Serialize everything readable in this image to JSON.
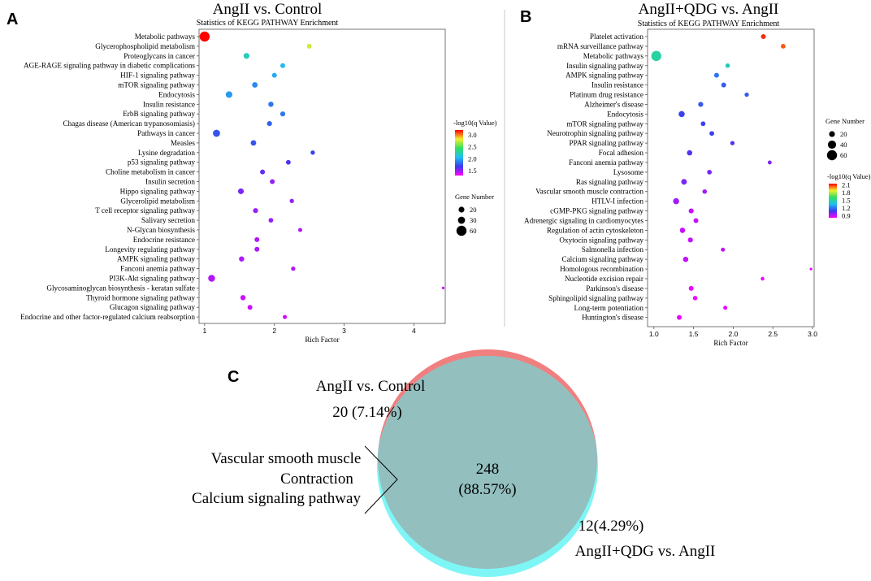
{
  "panels": {
    "a": {
      "letter": "A",
      "title": "AngII vs. Control",
      "subtitle": "Statistics of KEGG PATHWAY Enrichment"
    },
    "b": {
      "letter": "B",
      "title": "AngII+QDG vs. AngII",
      "subtitle": "Statistics of KEGG PATHWAY Enrichment"
    },
    "c": {
      "letter": "C"
    }
  },
  "colors": {
    "low": "#ff00ff",
    "mid1": "#3a3af0",
    "mid2": "#20c0f0",
    "mid3": "#30e060",
    "mid4": "#f0f030",
    "high": "#ff0000",
    "venn_left": "#f08080",
    "venn_right": "#7ff6f6",
    "venn_overlap": "#93bfbf"
  },
  "chart_data": [
    {
      "type": "scatter",
      "title": "AngII vs. Control",
      "subtitle": "Statistics of KEGG PATHWAY Enrichment",
      "xlabel": "Rich Factor",
      "xlim": [
        0.92,
        4.45
      ],
      "xticks": [
        1,
        2,
        3,
        4
      ],
      "color_label": "-log10(q Value)",
      "color_range": [
        1.3,
        3.2
      ],
      "color_ticks": [
        "3.0",
        "2.5",
        "2.0",
        "1.5"
      ],
      "color_tick_values": [
        3.0,
        2.5,
        2.0,
        1.5
      ],
      "size_label": "Gene Number",
      "size_ticks": [
        20,
        30,
        60
      ],
      "size_range": [
        1,
        60
      ],
      "categories": [
        "Metabolic pathways",
        "Glycerophospholipid metabolism",
        "Proteoglycans in cancer",
        "AGE-RAGE signaling pathway in diabetic complications",
        "HIF-1 signaling pathway",
        "mTOR signaling pathway",
        "Endocytosis",
        "Insulin resistance",
        "ErbB signaling pathway",
        "Chagas disease (American trypanosomiasis)",
        "Pathways in cancer",
        "Measles",
        "Lysine degradation",
        "p53 signaling pathway",
        "Choline metabolism in cancer",
        "Insulin secretion",
        "Hippo signaling pathway",
        "Glycerolipid metabolism",
        "T cell receptor signaling pathway",
        "Salivary secretion",
        "N-Glycan biosynthesis",
        "Endocrine resistance",
        "Longevity regulating pathway",
        "AMPK signaling pathway",
        "Fanconi anemia pathway",
        "PI3K-Akt signaling pathway",
        "Glycosaminoglycan biosynthesis - keratan sulfate",
        "Thyroid hormone signaling pathway",
        "Glucagon signaling pathway",
        "Endocrine and other factor-regulated calcium reabsorption"
      ],
      "rich_factor": [
        1.0,
        2.5,
        1.6,
        2.12,
        2.0,
        1.72,
        1.35,
        1.95,
        2.12,
        1.93,
        1.17,
        1.7,
        2.55,
        2.2,
        1.83,
        1.97,
        1.52,
        2.25,
        1.73,
        1.95,
        2.37,
        1.75,
        1.75,
        1.53,
        2.27,
        1.1,
        4.42,
        1.55,
        1.65,
        2.15
      ],
      "neg_log10_q": [
        3.2,
        2.75,
        2.2,
        2.05,
        2.0,
        1.9,
        1.95,
        1.85,
        1.85,
        1.8,
        1.75,
        1.75,
        1.7,
        1.65,
        1.6,
        1.5,
        1.55,
        1.5,
        1.5,
        1.5,
        1.45,
        1.45,
        1.45,
        1.45,
        1.45,
        1.45,
        1.4,
        1.4,
        1.4,
        1.4
      ],
      "gene_number": [
        60,
        14,
        20,
        14,
        14,
        18,
        26,
        16,
        15,
        15,
        30,
        18,
        11,
        13,
        14,
        14,
        20,
        11,
        15,
        13,
        10,
        14,
        14,
        16,
        11,
        28,
        4,
        16,
        14,
        10
      ]
    },
    {
      "type": "scatter",
      "title": "AngII+QDG vs. AngII",
      "subtitle": "Statistics of KEGG PATHWAY Enrichment",
      "xlabel": "Rich Factor",
      "xlim": [
        0.92,
        3.02
      ],
      "xticks": [
        1.0,
        1.5,
        2.0,
        2.5,
        3.0
      ],
      "xtick_labels": [
        "1.0",
        "1.5",
        "2.0",
        "2.5",
        "3.0"
      ],
      "color_label": "-log10(q Value)",
      "color_range": [
        0.82,
        2.15
      ],
      "color_ticks": [
        "2.1",
        "1.8",
        "1.5",
        "1.2",
        "0.9"
      ],
      "color_tick_values": [
        2.1,
        1.8,
        1.5,
        1.2,
        0.9
      ],
      "size_label": "Gene Number",
      "size_ticks": [
        20,
        40,
        60
      ],
      "size_range": [
        1,
        60
      ],
      "categories": [
        "Platelet activation",
        "mRNA surveillance pathway",
        "Metabolic pathways",
        "Insulin signaling pathway",
        "AMPK signaling pathway",
        "Insulin resistance",
        "Platinum drug resistance",
        "Alzheimer's disease",
        "Endocytosis",
        "mTOR signaling pathway",
        "Neurotrophin signaling pathway",
        "PPAR signaling pathway",
        "Focal adhesion",
        "Fanconi anemia pathway",
        "Lysosome",
        "Ras signaling pathway",
        "Vascular smooth muscle contraction",
        "HTLV-I infection",
        "cGMP-PKG signaling pathway",
        "Adrenergic signaling in cardiomyocytes",
        "Regulation of actin cytoskeleton",
        "Oxytocin signaling pathway",
        "Salmonella infection",
        "Calcium signaling pathway",
        "Homologous recombination",
        "Nucleotide excision repair",
        "Parkinson's disease",
        "Sphingolipid signaling pathway",
        "Long-term potentiation",
        "Huntington's disease"
      ],
      "rich_factor": [
        2.38,
        2.63,
        1.03,
        1.93,
        1.79,
        1.88,
        2.17,
        1.59,
        1.35,
        1.62,
        1.73,
        1.99,
        1.45,
        2.46,
        1.7,
        1.38,
        1.64,
        1.28,
        1.47,
        1.53,
        1.36,
        1.46,
        1.87,
        1.4,
        2.98,
        2.37,
        1.47,
        1.52,
        1.9,
        1.32
      ],
      "neg_log10_q": [
        2.1,
        2.05,
        1.5,
        1.45,
        1.2,
        1.15,
        1.15,
        1.15,
        1.1,
        1.1,
        1.1,
        1.05,
        1.05,
        1.0,
        1.0,
        1.0,
        0.95,
        0.95,
        0.9,
        0.9,
        0.9,
        0.9,
        0.9,
        0.9,
        0.85,
        0.85,
        0.85,
        0.85,
        0.85,
        0.85
      ],
      "gene_number": [
        14,
        13,
        60,
        12,
        14,
        14,
        11,
        15,
        22,
        13,
        13,
        11,
        17,
        9,
        13,
        19,
        12,
        22,
        15,
        14,
        17,
        15,
        10,
        17,
        4,
        8,
        14,
        12,
        10,
        14
      ]
    }
  ],
  "venn": {
    "left_label": "AngII vs. Control",
    "left_value": "20 (7.14%)",
    "overlap_value": "248",
    "overlap_percent": "(88.57%)",
    "right_value": "12(4.29%)",
    "right_label": "AngII+QDG vs. AngII",
    "note_lines": [
      "Vascular smooth muscle",
      "Contraction",
      "Calcium signaling pathway"
    ]
  }
}
